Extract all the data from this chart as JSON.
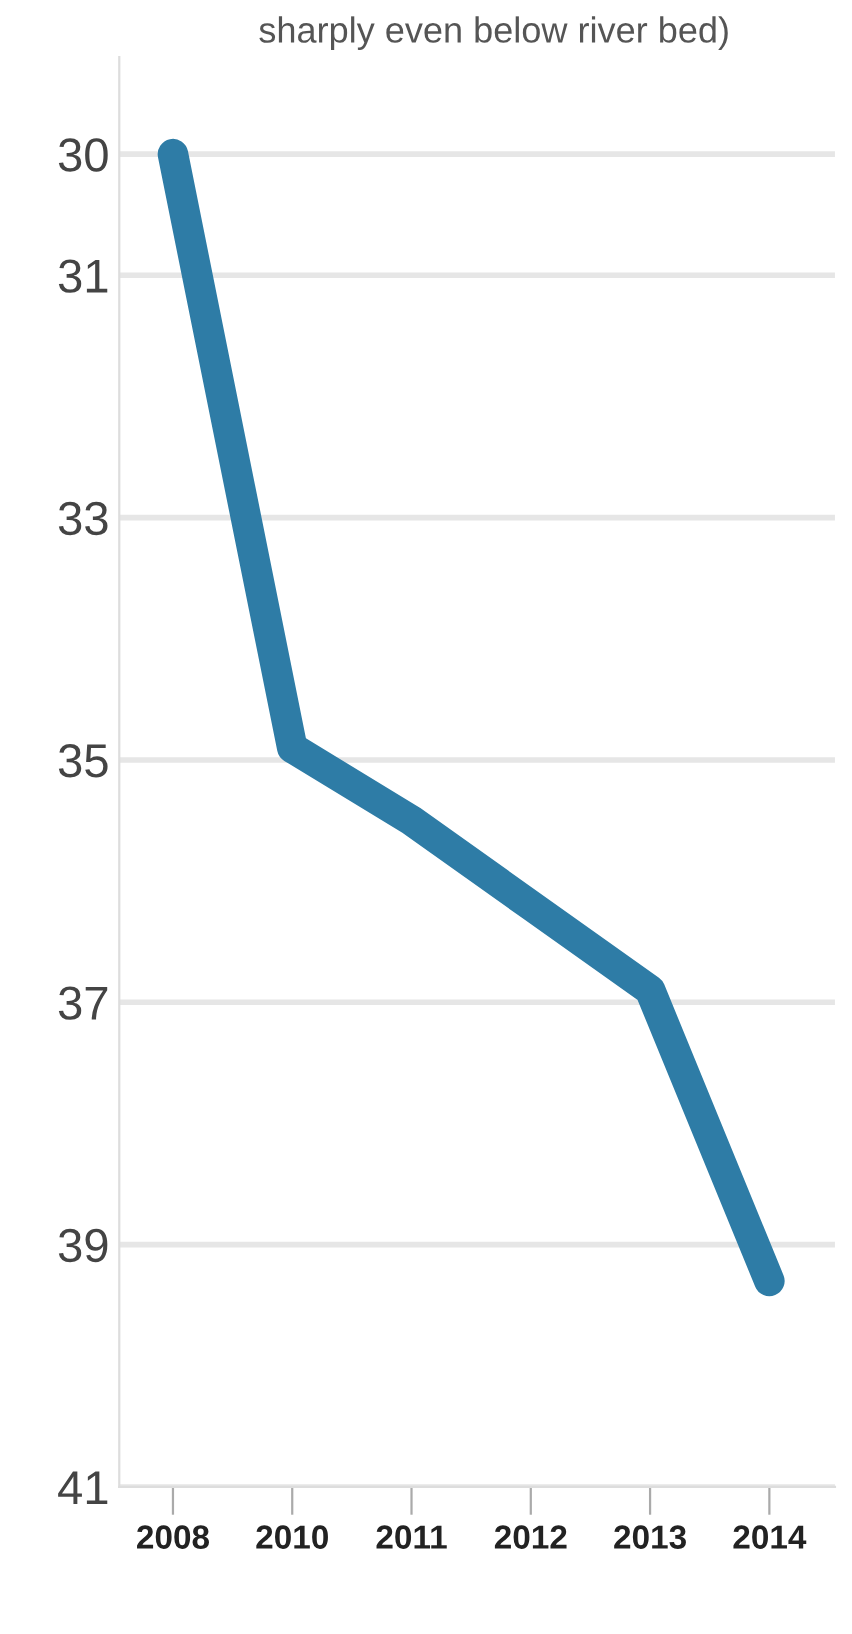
{
  "chart_data": {
    "type": "line",
    "title": "sharply even below river bed)",
    "categories": [
      "2008",
      "2010",
      "2011",
      "2012",
      "2013",
      "2014"
    ],
    "series": [
      {
        "color": "#2e7ca6",
        "values": [
          30.0,
          34.9,
          35.5,
          36.2,
          36.9,
          39.3
        ]
      }
    ],
    "ylim": [
      41,
      29.2
    ],
    "yticks": [
      30,
      31,
      33,
      35,
      37,
      39,
      41
    ],
    "grid": "y",
    "line_style": "solid"
  }
}
